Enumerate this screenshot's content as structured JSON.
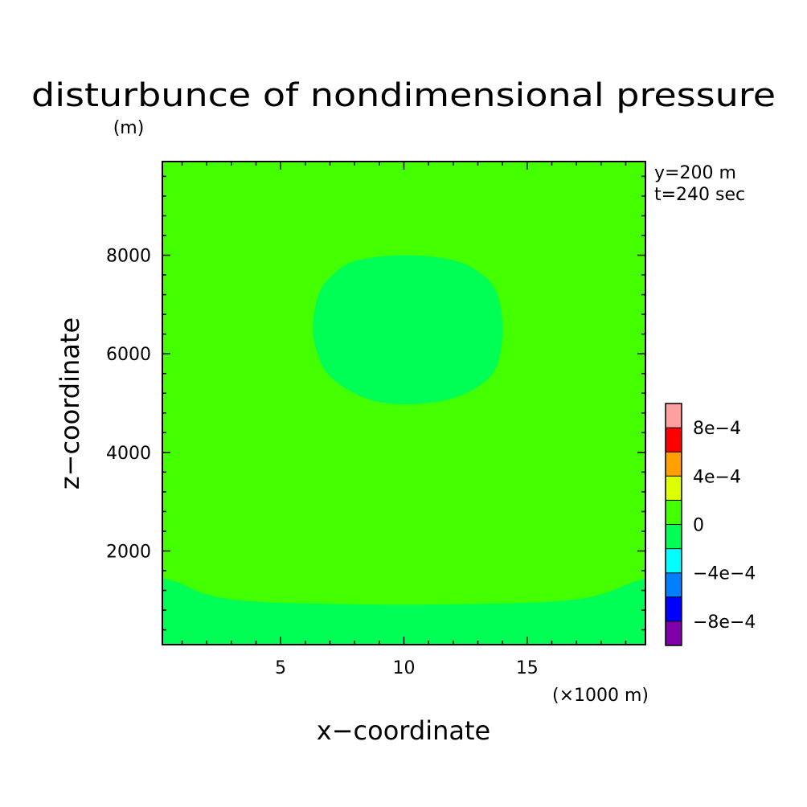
{
  "chart_data": {
    "type": "heatmap",
    "title": "disturbunce of nondimensional pressure",
    "unit_label": "(m)",
    "xlabel": "x−coordinate",
    "ylabel": "z−coordinate",
    "x_unit_label": "(×1000 m)",
    "annotations": [
      "y=200 m",
      "t=240 sec"
    ],
    "xlim": [
      0.2,
      19.8
    ],
    "ylim": [
      100,
      9900
    ],
    "x_ticks": [
      5,
      10,
      15
    ],
    "x_tick_labels": [
      "5",
      "10",
      "15"
    ],
    "y_ticks": [
      2000,
      4000,
      6000,
      8000
    ],
    "y_tick_labels": [
      "2000",
      "4000",
      "6000",
      "8000"
    ],
    "background_level": {
      "range": [
        0,
        0.0002
      ],
      "color": "#44ff00"
    },
    "regions": [
      {
        "name": "upper-negative-cell",
        "level_range": [
          -0.0002,
          0
        ],
        "color": "#00ff55",
        "boundary": [
          [
            6.3,
            6500
          ],
          [
            6.5,
            7150
          ],
          [
            7.0,
            7550
          ],
          [
            8.0,
            7880
          ],
          [
            10.0,
            8000
          ],
          [
            12.0,
            7900
          ],
          [
            13.2,
            7600
          ],
          [
            13.8,
            7200
          ],
          [
            14.0,
            6500
          ],
          [
            13.8,
            5800
          ],
          [
            13.2,
            5400
          ],
          [
            12.0,
            5100
          ],
          [
            10.5,
            4980
          ],
          [
            9.0,
            5020
          ],
          [
            7.8,
            5250
          ],
          [
            6.9,
            5600
          ],
          [
            6.5,
            6000
          ]
        ]
      },
      {
        "name": "lower-negative-band",
        "level_range": [
          -0.0002,
          0
        ],
        "color": "#00ff55",
        "boundary": [
          [
            0.2,
            100
          ],
          [
            0.2,
            1450
          ],
          [
            0.9,
            1350
          ],
          [
            1.8,
            1150
          ],
          [
            3.0,
            1020
          ],
          [
            5.0,
            950
          ],
          [
            8.0,
            920
          ],
          [
            10.0,
            910
          ],
          [
            12.0,
            920
          ],
          [
            15.0,
            950
          ],
          [
            17.0,
            1020
          ],
          [
            18.2,
            1150
          ],
          [
            19.1,
            1330
          ],
          [
            19.8,
            1450
          ],
          [
            19.8,
            100
          ]
        ]
      }
    ],
    "colorbar": {
      "levels": [
        -0.001,
        -0.0008,
        -0.0006,
        -0.0004,
        -0.0002,
        0,
        0.0002,
        0.0004,
        0.0006,
        0.0008,
        0.001
      ],
      "colors": [
        "#7f00a8",
        "#0000ff",
        "#0080ff",
        "#00ffff",
        "#00ff55",
        "#44ff00",
        "#ddff00",
        "#ffa000",
        "#ff0000",
        "#ffa0a0"
      ],
      "tick_values": [
        -0.0008,
        -0.0004,
        0,
        0.0004,
        0.0008
      ],
      "tick_labels": [
        "−8e−4",
        "−4e−4",
        "0",
        "4e−4",
        "8e−4"
      ]
    }
  }
}
